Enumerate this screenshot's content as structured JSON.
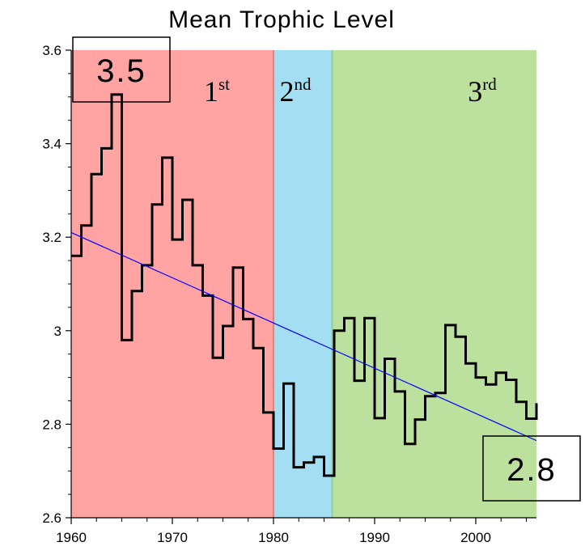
{
  "chart_data": {
    "type": "line",
    "title": "Mean Trophic Level",
    "xlabel": "",
    "ylabel": "",
    "xlim": [
      1960,
      2006
    ],
    "ylim": [
      2.6,
      3.6
    ],
    "x_ticks": [
      1960,
      1970,
      1980,
      1990,
      2000
    ],
    "x_tick_labels": [
      "1960",
      "1970",
      "1980",
      "1990",
      "2000"
    ],
    "y_ticks": [
      2.6,
      2.8,
      3.0,
      3.2,
      3.4,
      3.6
    ],
    "y_tick_labels": [
      "2.6",
      "2.8",
      "3",
      "3.2",
      "3.4",
      "3.6"
    ],
    "grid": false,
    "colors": {
      "period_1": "#ffa3a3",
      "period_2": "#a4def3",
      "period_3": "#bce09e",
      "series": "#000000",
      "trend": "#0000ff"
    },
    "periods": [
      {
        "base": "1",
        "sup": "st",
        "start": 1960,
        "end": 1980
      },
      {
        "base": "2",
        "sup": "nd",
        "start": 1980,
        "end": 1985.8
      },
      {
        "base": "3",
        "sup": "rd",
        "start": 1985.8,
        "end": 2006
      }
    ],
    "series": [
      {
        "style": "step",
        "x": [
          1960,
          1961,
          1962,
          1963,
          1964,
          1965,
          1966,
          1967,
          1968,
          1969,
          1970,
          1971,
          1972,
          1973,
          1974,
          1975,
          1976,
          1977,
          1978,
          1979,
          1980,
          1981,
          1982,
          1983,
          1984,
          1985,
          1986,
          1987,
          1988,
          1989,
          1990,
          1991,
          1992,
          1993,
          1994,
          1995,
          1996,
          1997,
          1998,
          1999,
          2000,
          2001,
          2002,
          2003,
          2004,
          2005
        ],
        "y": [
          3.16,
          3.225,
          3.335,
          3.39,
          3.505,
          2.98,
          3.085,
          3.14,
          3.27,
          3.37,
          3.195,
          3.28,
          3.14,
          3.075,
          2.942,
          3.01,
          3.135,
          3.025,
          2.963,
          2.825,
          2.748,
          2.887,
          2.708,
          2.718,
          2.73,
          2.69,
          3.0,
          3.027,
          2.893,
          3.027,
          2.813,
          2.94,
          2.87,
          2.758,
          2.81,
          2.86,
          2.867,
          3.012,
          2.987,
          2.93,
          2.9,
          2.885,
          2.91,
          2.895,
          2.848,
          2.812
        ]
      },
      {
        "style": "trend",
        "x": [
          1960,
          2006
        ],
        "y": [
          3.21,
          2.765
        ]
      }
    ],
    "annotations": [
      {
        "text": "3.5",
        "x": 1964.5,
        "y": 3.55
      },
      {
        "text": "2.8",
        "x": 2005.5,
        "y": 2.71
      }
    ]
  }
}
